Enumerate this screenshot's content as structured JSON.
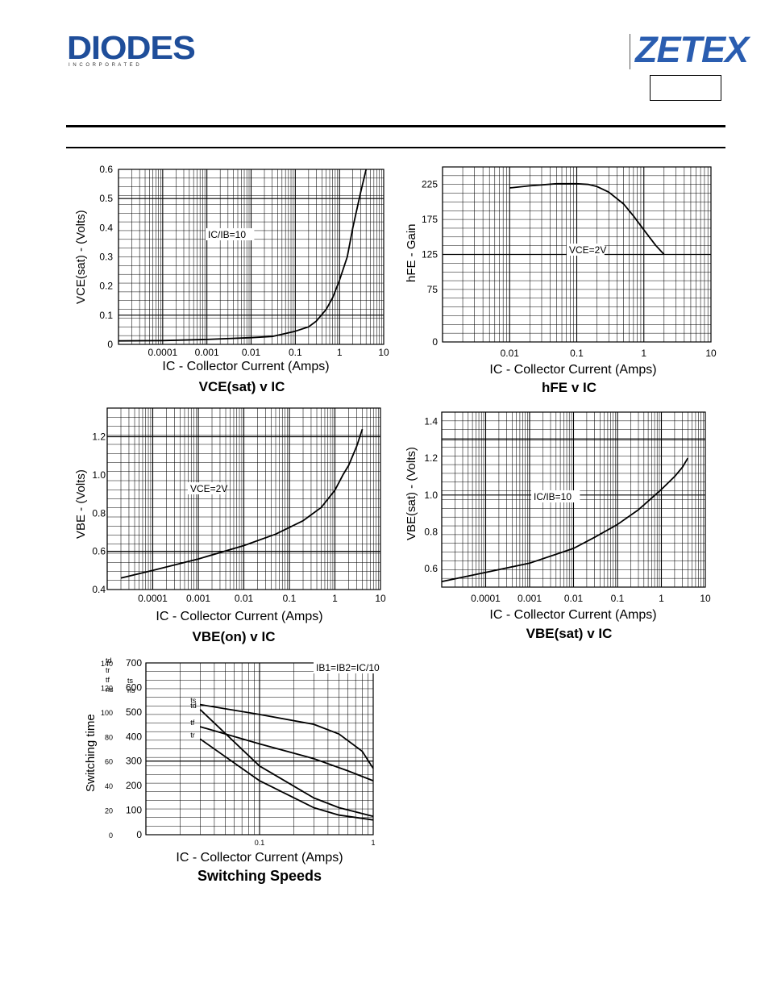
{
  "header": {
    "brand_left": "DIODES",
    "brand_left_sub": "I N C O R P O R A T E D",
    "brand_right": "ZETEX",
    "part_box": ""
  },
  "chart_data": [
    {
      "type": "line",
      "title": "VCE(sat) v IC",
      "title_parts": [
        "V",
        "CE(sat)",
        " v I",
        "C"
      ],
      "xlabel": "IC - Collector Current (Amps)",
      "ylabel": "VCE(sat) - (Volts)",
      "xscale": "log",
      "xlim": [
        1e-05,
        10
      ],
      "ylim": [
        0,
        0.6
      ],
      "x_ticks": [
        {
          "v": 0.0001,
          "label": "0.0001"
        },
        {
          "v": 0.001,
          "label": "0.001"
        },
        {
          "v": 0.01,
          "label": "0.01"
        },
        {
          "v": 0.1,
          "label": "0.1"
        },
        {
          "v": 1,
          "label": "1"
        },
        {
          "v": 10,
          "label": "10"
        }
      ],
      "y_ticks": [
        {
          "v": 0,
          "label": "0"
        },
        {
          "v": 0.1,
          "label": "0.1"
        },
        {
          "v": 0.2,
          "label": "0.2"
        },
        {
          "v": 0.3,
          "label": "0.3"
        },
        {
          "v": 0.4,
          "label": "0.4"
        },
        {
          "v": 0.5,
          "label": "0.5"
        },
        {
          "v": 0.6,
          "label": "0.6"
        }
      ],
      "y_heavy": [
        0.1,
        0.5
      ],
      "annotation": "IC/IB=10",
      "series": [
        {
          "x": [
            1e-05,
            0.0001,
            0.001,
            0.01,
            0.03,
            0.1,
            0.2,
            0.3,
            0.5,
            0.7,
            1,
            1.5,
            2,
            3,
            4
          ],
          "y": [
            0.012,
            0.013,
            0.017,
            0.023,
            0.027,
            0.045,
            0.06,
            0.08,
            0.12,
            0.16,
            0.22,
            0.3,
            0.4,
            0.52,
            0.6
          ]
        }
      ]
    },
    {
      "type": "line",
      "title": "hFE v IC",
      "title_parts": [
        "h",
        "FE",
        " v I",
        "C"
      ],
      "xlabel": "IC - Collector Current (Amps)",
      "ylabel": "hFE - Gain",
      "xscale": "log",
      "xlim": [
        0.001,
        10
      ],
      "ylim": [
        0,
        250
      ],
      "x_ticks": [
        {
          "v": 0.01,
          "label": "0.01"
        },
        {
          "v": 0.1,
          "label": "0.1"
        },
        {
          "v": 1,
          "label": "1"
        },
        {
          "v": 10,
          "label": "10"
        }
      ],
      "y_ticks": [
        {
          "v": 0,
          "label": "0"
        },
        {
          "v": 75,
          "label": "75"
        },
        {
          "v": 125,
          "label": "125"
        },
        {
          "v": 175,
          "label": "175"
        },
        {
          "v": 225,
          "label": "225"
        }
      ],
      "y_heavy": [
        125
      ],
      "annotation": "VCE=2V",
      "series": [
        {
          "x": [
            0.01,
            0.02,
            0.05,
            0.1,
            0.15,
            0.2,
            0.3,
            0.5,
            0.7,
            1,
            1.5,
            2
          ],
          "y": [
            220,
            223,
            226,
            226,
            225,
            222,
            214,
            197,
            180,
            160,
            138,
            125
          ]
        }
      ]
    },
    {
      "type": "line",
      "title": "VBE(on) v IC",
      "title_parts": [
        "V",
        "BE(on)",
        " v I",
        "C"
      ],
      "xlabel": "IC - Collector Current (Amps)",
      "ylabel": "VBE - (Volts)",
      "xscale": "log",
      "xlim": [
        1e-05,
        10
      ],
      "ylim": [
        0.4,
        1.35
      ],
      "x_ticks": [
        {
          "v": 0.0001,
          "label": "0.0001"
        },
        {
          "v": 0.001,
          "label": "0.001"
        },
        {
          "v": 0.01,
          "label": "0.01"
        },
        {
          "v": 0.1,
          "label": "0.1"
        },
        {
          "v": 1,
          "label": "1"
        },
        {
          "v": 10,
          "label": "10"
        }
      ],
      "y_ticks": [
        {
          "v": 0.4,
          "label": "0.4"
        },
        {
          "v": 0.6,
          "label": "0.6"
        },
        {
          "v": 0.8,
          "label": "0.8"
        },
        {
          "v": 1.0,
          "label": "1.0"
        },
        {
          "v": 1.2,
          "label": "1.2"
        }
      ],
      "y_heavy": [
        0.6,
        1.2
      ],
      "annotation": "VCE=2V",
      "series": [
        {
          "x": [
            2e-05,
            0.0001,
            0.001,
            0.01,
            0.05,
            0.2,
            0.5,
            1,
            1.5,
            2,
            3,
            4
          ],
          "y": [
            0.46,
            0.5,
            0.56,
            0.63,
            0.69,
            0.76,
            0.83,
            0.92,
            1.0,
            1.05,
            1.15,
            1.24
          ]
        }
      ]
    },
    {
      "type": "line",
      "title": "VBE(sat) v IC",
      "title_parts": [
        "V",
        "BE(sat)",
        " v I",
        "C"
      ],
      "xlabel": "IC - Collector Current (Amps)",
      "ylabel": "VBE(sat) - (Volts)",
      "xscale": "log",
      "xlim": [
        1e-05,
        10
      ],
      "ylim": [
        0.5,
        1.45
      ],
      "x_ticks": [
        {
          "v": 0.0001,
          "label": "0.0001"
        },
        {
          "v": 0.001,
          "label": "0.001"
        },
        {
          "v": 0.01,
          "label": "0.01"
        },
        {
          "v": 0.1,
          "label": "0.1"
        },
        {
          "v": 1,
          "label": "1"
        },
        {
          "v": 10,
          "label": "10"
        }
      ],
      "y_ticks": [
        {
          "v": 0.6,
          "label": "0.6"
        },
        {
          "v": 0.8,
          "label": "0.8"
        },
        {
          "v": 1.0,
          "label": "1.0"
        },
        {
          "v": 1.2,
          "label": "1.2"
        },
        {
          "v": 1.4,
          "label": "1.4"
        }
      ],
      "y_heavy": [
        1.0,
        1.3
      ],
      "annotation": "IC/IB=10",
      "series": [
        {
          "x": [
            1e-05,
            0.0001,
            0.001,
            0.01,
            0.03,
            0.1,
            0.3,
            1,
            2,
            3,
            4
          ],
          "y": [
            0.53,
            0.58,
            0.63,
            0.71,
            0.77,
            0.84,
            0.92,
            1.03,
            1.1,
            1.15,
            1.2
          ]
        }
      ]
    },
    {
      "type": "line",
      "title": "Switching Speeds",
      "xlabel": "IC - Collector Current (Amps)",
      "ylabel": "Switching time",
      "xscale": "log",
      "xlim": [
        0.01,
        1
      ],
      "ylim": [
        0,
        700
      ],
      "y2lim": [
        0,
        140
      ],
      "x_ticks": [
        {
          "v": 0.1,
          "label": "0.1"
        },
        {
          "v": 1,
          "label": "1"
        }
      ],
      "y_ticks": [
        {
          "v": 0,
          "label": "0"
        },
        {
          "v": 100,
          "label": "100"
        },
        {
          "v": 200,
          "label": "200"
        },
        {
          "v": 300,
          "label": "300"
        },
        {
          "v": 400,
          "label": "400"
        },
        {
          "v": 500,
          "label": "500"
        },
        {
          "v": 600,
          "label": "600"
        },
        {
          "v": 700,
          "label": "700"
        }
      ],
      "y2_ticks": [
        {
          "v": 0,
          "label": "0"
        },
        {
          "v": 20,
          "label": "20"
        },
        {
          "v": 40,
          "label": "40"
        },
        {
          "v": 60,
          "label": "60"
        },
        {
          "v": 80,
          "label": "80"
        },
        {
          "v": 100,
          "label": "100"
        },
        {
          "v": 120,
          "label": "120"
        },
        {
          "v": 140,
          "label": "140"
        }
      ],
      "y_heavy": [
        300
      ],
      "units_left": [
        "td",
        "tr",
        "tf",
        "ns"
      ],
      "units_right": [
        "ts",
        "ns"
      ],
      "annotation": "IB1=IB2=IC/10",
      "series": [
        {
          "name": "ts",
          "x": [
            0.03,
            0.1,
            0.3,
            0.5,
            0.8,
            1
          ],
          "y": [
            530,
            490,
            450,
            410,
            340,
            270
          ]
        },
        {
          "name": "td",
          "x": [
            0.03,
            0.1,
            0.3,
            0.5,
            1
          ],
          "y": [
            510,
            280,
            150,
            110,
            75
          ]
        },
        {
          "name": "tf",
          "x": [
            0.03,
            0.1,
            0.3,
            0.6,
            1
          ],
          "y": [
            440,
            370,
            310,
            260,
            220
          ]
        },
        {
          "name": "tr",
          "x": [
            0.03,
            0.1,
            0.3,
            0.5,
            1
          ],
          "y": [
            390,
            220,
            110,
            80,
            60
          ]
        }
      ]
    }
  ]
}
